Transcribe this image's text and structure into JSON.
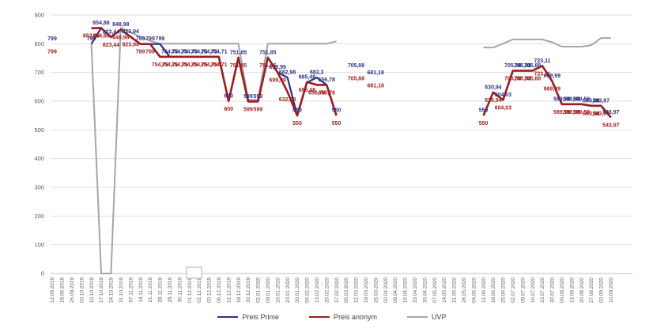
{
  "chart_data": {
    "type": "line",
    "title": "",
    "xlabel": "",
    "ylabel": "",
    "ylim": [
      0,
      900
    ],
    "y_ticks": [
      "0",
      "100",
      "200",
      "300",
      "400",
      "500",
      "600",
      "700",
      "800",
      "900"
    ],
    "grid": "horizontal",
    "legend_position": "bottom-center",
    "decimal_separator": "comma",
    "categories": [
      "12.09.2019",
      "19.09.2019",
      "26.09.2019",
      "03.10.2019",
      "10.10.2019",
      "17.10.2019",
      "24.10.2019",
      "31.10.2019",
      "07.11.2019",
      "14.11.2019",
      "21.11.2019",
      "28.11.2019",
      "29.11.2019",
      "30.11.2019",
      "01.12.2019",
      "02.12.2019",
      "03.12.2019",
      "05.12.2019",
      "12.12.2019",
      "19.12.2019",
      "30.12.2019",
      "02.01.2020",
      "09.01.2020",
      "16.01.2020",
      "23.01.2020",
      "30.01.2020",
      "06.02.2020",
      "13.02.2020",
      "20.02.2020",
      "27.02.2020",
      "05.03.2020",
      "12.03.2020",
      "19.03.2020",
      "26.03.2020",
      "02.04.2020",
      "09.04.2020",
      "16.04.2020",
      "23.04.2020",
      "30.04.2020",
      "07.05.2020",
      "14.05.2020",
      "21.05.2020",
      "28.05.2020",
      "04.06.2020",
      "12.06.2020",
      "18.06.2020",
      "25.06.2020",
      "02.07.2020",
      "09.07.2020",
      "16.07.2020",
      "23.07.2020",
      "30.07.2020",
      "06.08.2020",
      "13.08.2020",
      "20.08.2020",
      "27.08.2020",
      "03.09.2020",
      "10.09.2020"
    ],
    "series": [
      {
        "name": "Preis Prime",
        "color": "#2d3184",
        "label_position": "above",
        "show_labels": true,
        "values": [
          "799",
          null,
          null,
          null,
          "799",
          "854,88",
          "823,44",
          "848,98",
          "823,94",
          "799",
          "799",
          "799",
          "754,75",
          "754,75",
          "754,75",
          "754,75",
          "754,75",
          "754,71",
          "600",
          "751,85",
          "599",
          "599",
          "751,85",
          "699,99",
          "682,98",
          "550",
          "665,48",
          "682,3",
          "656,78",
          "550",
          null,
          "705,88",
          null,
          "681,18",
          null,
          null,
          null,
          null,
          null,
          null,
          null,
          null,
          null,
          null,
          "550",
          "630,94",
          "604,03",
          "705,88",
          "705,88",
          "705,88",
          "723,11",
          "669,99",
          "589,58",
          "589,58",
          "589,58",
          "583,98",
          "583,97",
          "543,97"
        ]
      },
      {
        "name": "Preis anonym",
        "color": "#9e1c1f",
        "label_position": "below",
        "show_labels": true,
        "values": [
          "799",
          null,
          null,
          null,
          "853,98",
          "854,88",
          "823,44",
          "848,98",
          "823,94",
          "799",
          "799",
          "754,75",
          "754,75",
          "754,75",
          "754,75",
          "754,75",
          "754,75",
          "754,71",
          "600",
          "751,85",
          "599",
          "599",
          "751,85",
          "699,99",
          "632,98",
          "550",
          "666,48",
          "656,78",
          "656,78",
          "550",
          null,
          "705,88",
          null,
          "681,18",
          null,
          null,
          null,
          null,
          null,
          null,
          null,
          null,
          null,
          null,
          "550",
          "630,94",
          "604,03",
          "705,88",
          "705,88",
          "705,88",
          "723,11",
          "669,99",
          "589,58",
          "589,58",
          "589,58",
          "583,98",
          "583,97",
          "543,97"
        ]
      },
      {
        "name": "UVP",
        "color": "#a6a6a6",
        "label_position": "none",
        "show_labels": false,
        "values": [
          null,
          null,
          null,
          null,
          "800",
          "0",
          "0",
          "855",
          "840",
          "825",
          "810",
          "800",
          "800",
          "800",
          "800",
          "800",
          "800",
          "800",
          "800",
          "800",
          "605",
          "605",
          "800",
          "800",
          "800",
          "800",
          "800",
          "800",
          "800",
          "808",
          null,
          null,
          null,
          null,
          null,
          null,
          null,
          null,
          null,
          null,
          null,
          null,
          null,
          null,
          "787",
          "787",
          "800",
          "815",
          "815",
          "815",
          "815",
          "805",
          "790",
          "790",
          "790",
          "795",
          "820",
          "820"
        ]
      }
    ],
    "legend": [
      "Preis Prime",
      "Preis anonym",
      "UVP"
    ]
  },
  "style": {
    "axis_text_color": "#595959",
    "gridline_color": "#e0e0e0",
    "axis_line_color": "#bfbfbf",
    "background": "#ffffff"
  }
}
